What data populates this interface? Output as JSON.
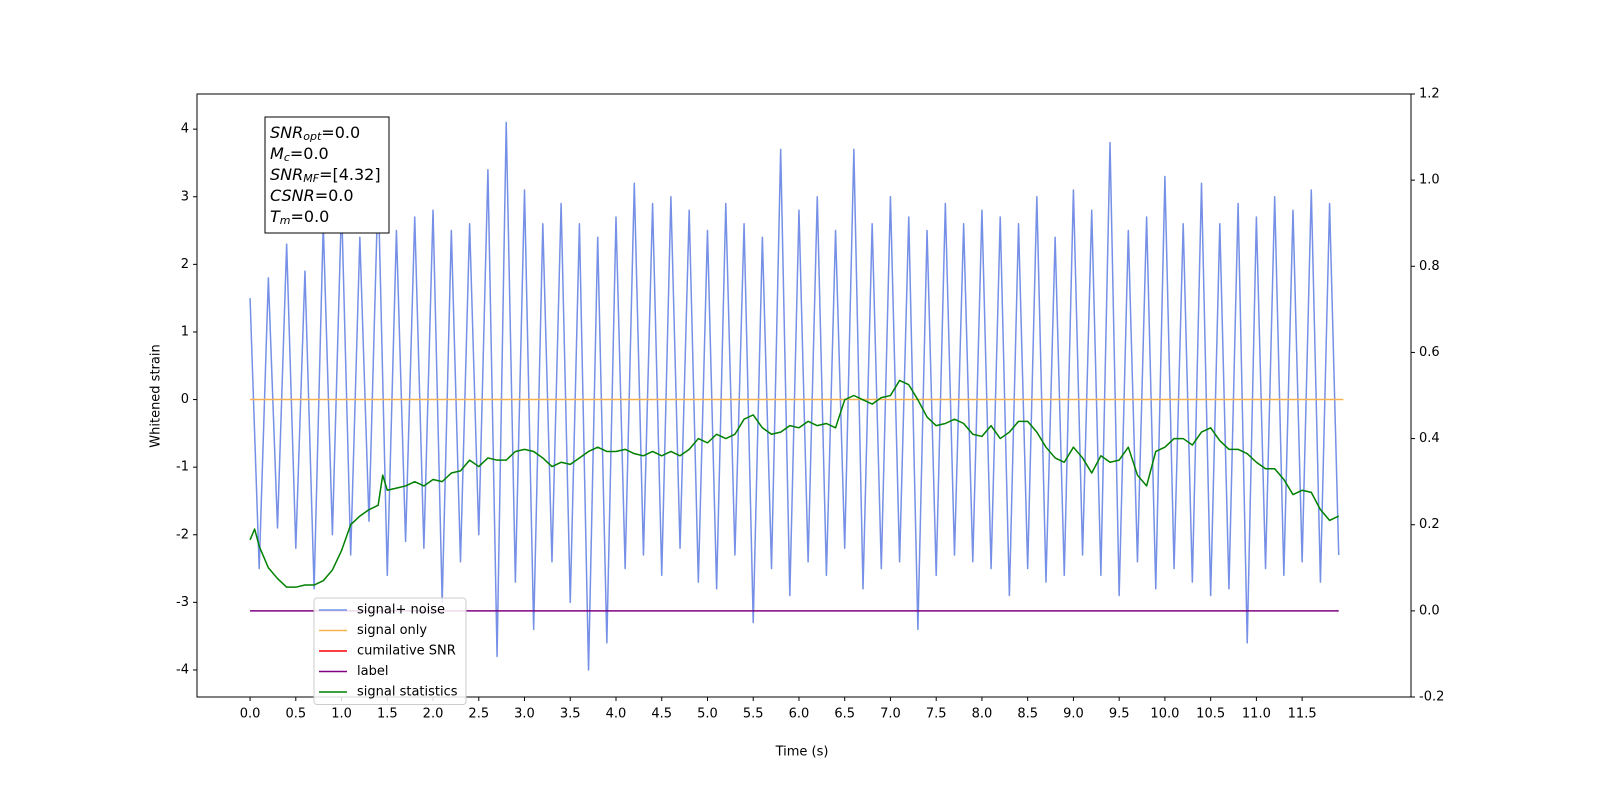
{
  "chart_data": {
    "type": "line",
    "xlabel": "Time (s)",
    "ylabel": "Whitened strain",
    "xlim": [
      -0.58,
      12.69
    ],
    "ylim": [
      -4.4,
      4.52
    ],
    "y2lim": [
      -0.2,
      1.2
    ],
    "xticks": [
      {
        "value": 0,
        "label": "0.0"
      },
      0.5,
      {
        "value": 1,
        "label": "1.0"
      },
      1.5,
      {
        "value": 2,
        "label": "2.0"
      },
      2.5,
      {
        "value": 3,
        "label": "3.0"
      },
      3.5,
      {
        "value": 4,
        "label": "4.0"
      },
      4.5,
      {
        "value": 5,
        "label": "5.0"
      },
      5.5,
      {
        "value": 6,
        "label": "6.0"
      },
      6.5,
      {
        "value": 7,
        "label": "7.0"
      },
      7.5,
      {
        "value": 8,
        "label": "8.0"
      },
      8.5,
      {
        "value": 9,
        "label": "9.0"
      },
      9.5,
      {
        "value": 10,
        "label": "10.0"
      },
      10.5,
      {
        "value": 11,
        "label": "11.0"
      },
      11.5
    ],
    "yticks": [
      -4,
      -3,
      -2,
      -1,
      0,
      1,
      2,
      3,
      4
    ],
    "y2ticks": [
      -0.2,
      {
        "value": 0,
        "label": "0.0"
      },
      0.2,
      0.4,
      0.6,
      0.8,
      {
        "value": 1,
        "label": "1.0"
      },
      1.2
    ],
    "annotation": [
      {
        "base": "SNR",
        "sub": "opt",
        "rest": "=0.0"
      },
      {
        "base": "M",
        "sub": "c",
        "rest": "=0.0"
      },
      {
        "base": "SNR",
        "sub": "MF",
        "rest": "=[4.32]"
      },
      {
        "base": "CSNR",
        "sub": "",
        "rest": "=0.0"
      },
      {
        "base": "T",
        "sub": "m",
        "rest": "=0.0"
      }
    ],
    "legend": "lower left",
    "series": [
      {
        "name": "signal+ noise",
        "color": "#7590e6",
        "x": [
          0.0,
          0.1,
          0.2,
          0.3,
          0.4,
          0.5,
          0.6,
          0.7,
          0.8,
          0.9,
          1.0,
          1.1,
          1.2,
          1.3,
          1.4,
          1.5,
          1.6,
          1.7,
          1.8,
          1.9,
          2.0,
          2.1,
          2.2,
          2.3,
          2.4,
          2.5,
          2.6,
          2.7,
          2.8,
          2.9,
          3.0,
          3.1,
          3.2,
          3.3,
          3.4,
          3.5,
          3.6,
          3.7,
          3.8,
          3.9,
          4.0,
          4.1,
          4.2,
          4.3,
          4.4,
          4.5,
          4.6,
          4.7,
          4.8,
          4.9,
          5.0,
          5.1,
          5.2,
          5.3,
          5.4,
          5.5,
          5.6,
          5.7,
          5.8,
          5.9,
          6.0,
          6.1,
          6.2,
          6.3,
          6.4,
          6.5,
          6.6,
          6.7,
          6.8,
          6.9,
          7.0,
          7.1,
          7.2,
          7.3,
          7.4,
          7.5,
          7.6,
          7.7,
          7.8,
          7.9,
          8.0,
          8.1,
          8.2,
          8.3,
          8.4,
          8.5,
          8.6,
          8.7,
          8.8,
          8.9,
          9.0,
          9.1,
          9.2,
          9.3,
          9.4,
          9.5,
          9.6,
          9.7,
          9.8,
          9.9,
          10.0,
          10.1,
          10.2,
          10.3,
          10.4,
          10.5,
          10.6,
          10.7,
          10.8,
          10.9,
          11.0,
          11.1,
          11.2,
          11.3,
          11.4,
          11.5,
          11.6,
          11.7,
          11.8,
          11.9
        ],
        "values": [
          1.5,
          -2.5,
          1.8,
          -1.9,
          2.3,
          -2.2,
          1.9,
          -2.8,
          2.6,
          -2.0,
          2.9,
          -2.3,
          2.4,
          -1.8,
          3.2,
          -2.6,
          2.5,
          -2.1,
          2.7,
          -2.2,
          2.8,
          -3.0,
          2.5,
          -2.4,
          2.6,
          -2.0,
          3.4,
          -3.8,
          4.1,
          -2.7,
          3.1,
          -3.4,
          2.6,
          -2.4,
          2.9,
          -3.0,
          2.6,
          -4.0,
          2.4,
          -3.6,
          2.7,
          -2.5,
          3.2,
          -2.3,
          2.9,
          -2.6,
          3.0,
          -2.2,
          2.8,
          -2.7,
          2.5,
          -2.8,
          2.9,
          -2.3,
          2.6,
          -3.3,
          2.4,
          -2.5,
          3.7,
          -2.9,
          2.8,
          -2.4,
          3.0,
          -2.6,
          2.5,
          -2.2,
          3.7,
          -2.8,
          2.6,
          -2.5,
          3.0,
          -2.4,
          2.7,
          -3.4,
          2.5,
          -2.6,
          2.9,
          -2.3,
          2.6,
          -2.4,
          2.8,
          -2.5,
          2.7,
          -2.9,
          2.6,
          -2.5,
          3.0,
          -2.7,
          2.4,
          -2.6,
          3.1,
          -2.3,
          2.8,
          -2.6,
          3.8,
          -2.9,
          2.5,
          -2.4,
          2.7,
          -2.8,
          3.3,
          -2.5,
          2.6,
          -2.7,
          3.2,
          -2.9,
          2.6,
          -2.8,
          2.9,
          -3.6,
          2.7,
          -2.5,
          3.0,
          -2.6,
          2.8,
          -2.4,
          3.1,
          -2.7,
          2.9,
          -2.3
        ]
      },
      {
        "name": "signal only",
        "color": "#f7b24f",
        "x": [
          0.0,
          11.95
        ],
        "values": [
          0,
          0
        ]
      },
      {
        "name": "cumilative SNR",
        "color": "red",
        "x": [],
        "values": []
      },
      {
        "name": "label",
        "color": "purple",
        "axis": "y2",
        "x": [
          0.0,
          11.9
        ],
        "values": [
          0,
          0
        ]
      },
      {
        "name": "signal statistics",
        "color": "green",
        "axis": "y2",
        "x": [
          0.0,
          0.05,
          0.1,
          0.2,
          0.3,
          0.4,
          0.5,
          0.6,
          0.7,
          0.8,
          0.9,
          1.0,
          1.1,
          1.2,
          1.3,
          1.4,
          1.45,
          1.5,
          1.6,
          1.7,
          1.8,
          1.9,
          2.0,
          2.1,
          2.2,
          2.3,
          2.4,
          2.5,
          2.6,
          2.7,
          2.8,
          2.9,
          3.0,
          3.1,
          3.2,
          3.3,
          3.4,
          3.5,
          3.6,
          3.7,
          3.8,
          3.9,
          4.0,
          4.1,
          4.2,
          4.3,
          4.4,
          4.5,
          4.6,
          4.7,
          4.8,
          4.9,
          5.0,
          5.1,
          5.2,
          5.3,
          5.4,
          5.5,
          5.6,
          5.7,
          5.8,
          5.9,
          6.0,
          6.1,
          6.2,
          6.3,
          6.4,
          6.5,
          6.6,
          6.7,
          6.8,
          6.9,
          7.0,
          7.1,
          7.2,
          7.3,
          7.4,
          7.5,
          7.6,
          7.7,
          7.8,
          7.9,
          8.0,
          8.1,
          8.2,
          8.3,
          8.4,
          8.5,
          8.6,
          8.7,
          8.8,
          8.9,
          9.0,
          9.1,
          9.2,
          9.3,
          9.4,
          9.5,
          9.6,
          9.7,
          9.8,
          9.9,
          10.0,
          10.1,
          10.2,
          10.3,
          10.4,
          10.5,
          10.6,
          10.7,
          10.8,
          10.9,
          11.0,
          11.1,
          11.2,
          11.3,
          11.4,
          11.5,
          11.6,
          11.7,
          11.8,
          11.9
        ],
        "values": [
          0.165,
          0.19,
          0.15,
          0.1,
          0.075,
          0.055,
          0.055,
          0.06,
          0.06,
          0.07,
          0.095,
          0.14,
          0.2,
          0.22,
          0.235,
          0.245,
          0.315,
          0.28,
          0.285,
          0.29,
          0.3,
          0.29,
          0.305,
          0.3,
          0.32,
          0.325,
          0.35,
          0.335,
          0.355,
          0.35,
          0.35,
          0.37,
          0.375,
          0.37,
          0.355,
          0.335,
          0.345,
          0.34,
          0.355,
          0.37,
          0.38,
          0.37,
          0.37,
          0.375,
          0.365,
          0.36,
          0.37,
          0.36,
          0.37,
          0.36,
          0.375,
          0.4,
          0.39,
          0.41,
          0.4,
          0.41,
          0.445,
          0.455,
          0.425,
          0.41,
          0.415,
          0.43,
          0.425,
          0.44,
          0.43,
          0.435,
          0.425,
          0.49,
          0.5,
          0.49,
          0.48,
          0.495,
          0.5,
          0.535,
          0.525,
          0.49,
          0.45,
          0.43,
          0.435,
          0.445,
          0.435,
          0.41,
          0.405,
          0.43,
          0.4,
          0.415,
          0.44,
          0.44,
          0.415,
          0.38,
          0.355,
          0.345,
          0.38,
          0.355,
          0.32,
          0.36,
          0.345,
          0.35,
          0.38,
          0.315,
          0.29,
          0.37,
          0.38,
          0.4,
          0.4,
          0.385,
          0.415,
          0.425,
          0.395,
          0.375,
          0.375,
          0.365,
          0.345,
          0.33,
          0.33,
          0.305,
          0.27,
          0.28,
          0.275,
          0.235,
          0.21,
          0.22
        ]
      }
    ]
  }
}
